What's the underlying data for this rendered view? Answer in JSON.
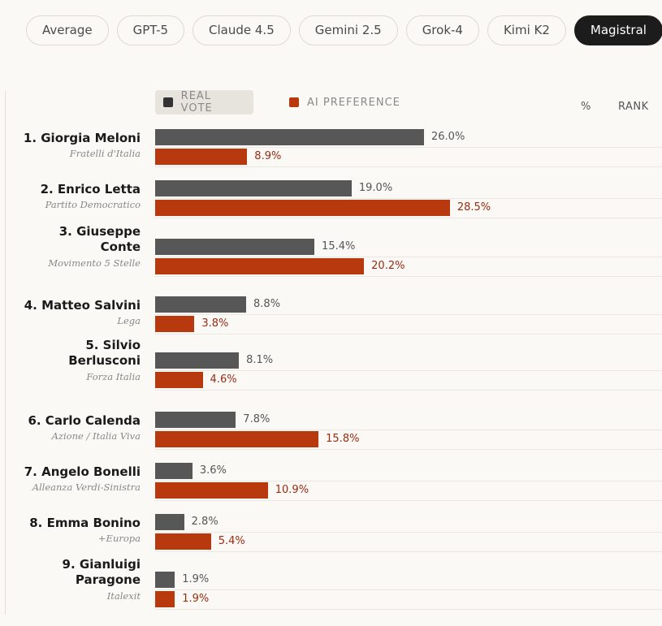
{
  "tabs": [
    "Average",
    "GPT-5",
    "Claude 4.5",
    "Gemini 2.5",
    "Grok-4",
    "Kimi K2",
    "Magistral"
  ],
  "active_tab": "Magistral",
  "legend": {
    "real": "REAL VOTE",
    "ai": "AI PREFERENCE"
  },
  "columns": {
    "pct": "%",
    "rank": "RANK"
  },
  "colors": {
    "real": "#575757",
    "ai": "#b8390e"
  },
  "chart_data": {
    "type": "bar",
    "orientation": "horizontal",
    "series": [
      {
        "name": "REAL VOTE",
        "values": [
          26.0,
          19.0,
          15.4,
          8.8,
          8.1,
          7.8,
          3.6,
          2.8,
          1.9
        ]
      },
      {
        "name": "AI PREFERENCE",
        "values": [
          8.9,
          28.5,
          20.2,
          3.8,
          4.6,
          15.8,
          10.9,
          5.4,
          1.9
        ]
      }
    ],
    "rows": [
      {
        "rank": "1.",
        "name": "Giorgia Meloni",
        "party": "Fratelli d'Italia",
        "real": "26.0%",
        "ai": "8.9%"
      },
      {
        "rank": "2.",
        "name": "Enrico Letta",
        "party": "Partito Democratico",
        "real": "19.0%",
        "ai": "28.5%"
      },
      {
        "rank": "3.",
        "name": "Giuseppe Conte",
        "party": "Movimento 5 Stelle",
        "real": "15.4%",
        "ai": "20.2%"
      },
      {
        "rank": "4.",
        "name": "Matteo Salvini",
        "party": "Lega",
        "real": "8.8%",
        "ai": "3.8%"
      },
      {
        "rank": "5.",
        "name": "Silvio Berlusconi",
        "party": "Forza Italia",
        "real": "8.1%",
        "ai": "4.6%"
      },
      {
        "rank": "6.",
        "name": "Carlo Calenda",
        "party": "Azione / Italia Viva",
        "real": "7.8%",
        "ai": "15.8%"
      },
      {
        "rank": "7.",
        "name": "Angelo Bonelli",
        "party": "Alleanza Verdi-Sinistra",
        "real": "3.6%",
        "ai": "10.9%"
      },
      {
        "rank": "8.",
        "name": "Emma Bonino",
        "party": "+Europa",
        "real": "2.8%",
        "ai": "5.4%"
      },
      {
        "rank": "9.",
        "name": "Gianluigi Paragone",
        "party": "Italexit",
        "real": "1.9%",
        "ai": "1.9%"
      }
    ]
  }
}
